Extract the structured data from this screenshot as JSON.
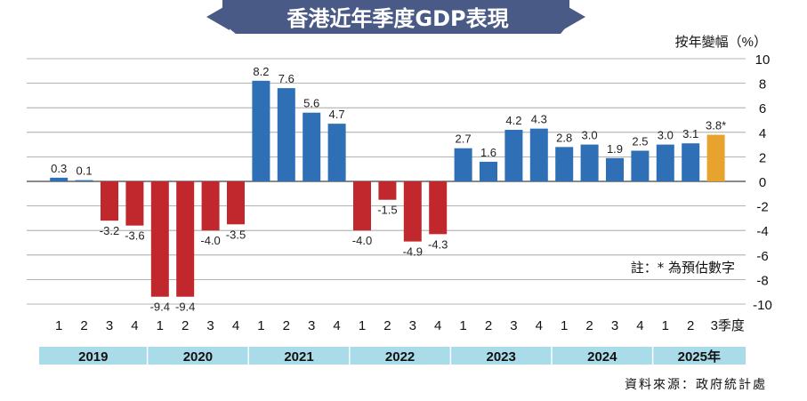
{
  "title": "香港近年季度GDP表現",
  "ylabel": "按年變幅（%）",
  "note": "註：* 為預估數字",
  "source": "資料來源：政府統計處",
  "colors": {
    "positive": "#2e6fb5",
    "negative": "#c0282e",
    "estimate": "#e8a22e",
    "title_bg": "#4a5a86",
    "year_band": "#a9dbe8",
    "grid": "#9a9a9a"
  },
  "chart_data": {
    "type": "bar",
    "ylim": [
      -10,
      10
    ],
    "yticks": [
      10,
      8,
      6,
      4,
      2,
      0,
      -2,
      -4,
      -6,
      -8,
      -10
    ],
    "grid": true,
    "quarter_labels": [
      "1",
      "2",
      "3",
      "4",
      "1",
      "2",
      "3",
      "4",
      "1",
      "2",
      "3",
      "4",
      "1",
      "2",
      "3",
      "4",
      "1",
      "2",
      "3",
      "4",
      "1",
      "2",
      "3",
      "4",
      "1",
      "2",
      "3季度"
    ],
    "years": [
      {
        "label": "2019",
        "quarters": 4
      },
      {
        "label": "2020",
        "quarters": 4
      },
      {
        "label": "2021",
        "quarters": 4
      },
      {
        "label": "2022",
        "quarters": 4
      },
      {
        "label": "2023",
        "quarters": 4
      },
      {
        "label": "2024",
        "quarters": 4
      },
      {
        "label": "2025年",
        "quarters": 3
      }
    ],
    "values": [
      0.3,
      0.1,
      -3.2,
      -3.6,
      -9.4,
      -9.4,
      -4.0,
      -3.5,
      8.2,
      7.6,
      5.6,
      4.7,
      -4.0,
      -1.5,
      -4.9,
      -4.3,
      2.7,
      1.6,
      4.2,
      4.3,
      2.8,
      3.0,
      1.9,
      2.5,
      3.0,
      3.1,
      3.8
    ],
    "labels": [
      "0.3",
      "0.1",
      "-3.2",
      "-3.6",
      "-9.4",
      "-9.4",
      "-4.0",
      "-3.5",
      "8.2",
      "7.6",
      "5.6",
      "4.7",
      "-4.0",
      "-1.5",
      "-4.9",
      "-4.3",
      "2.7",
      "1.6",
      "4.2",
      "4.3",
      "2.8",
      "3.0",
      "1.9",
      "2.5",
      "3.0",
      "3.1",
      "3.8*"
    ],
    "estimate": [
      false,
      false,
      false,
      false,
      false,
      false,
      false,
      false,
      false,
      false,
      false,
      false,
      false,
      false,
      false,
      false,
      false,
      false,
      false,
      false,
      false,
      false,
      false,
      false,
      false,
      false,
      true
    ]
  }
}
